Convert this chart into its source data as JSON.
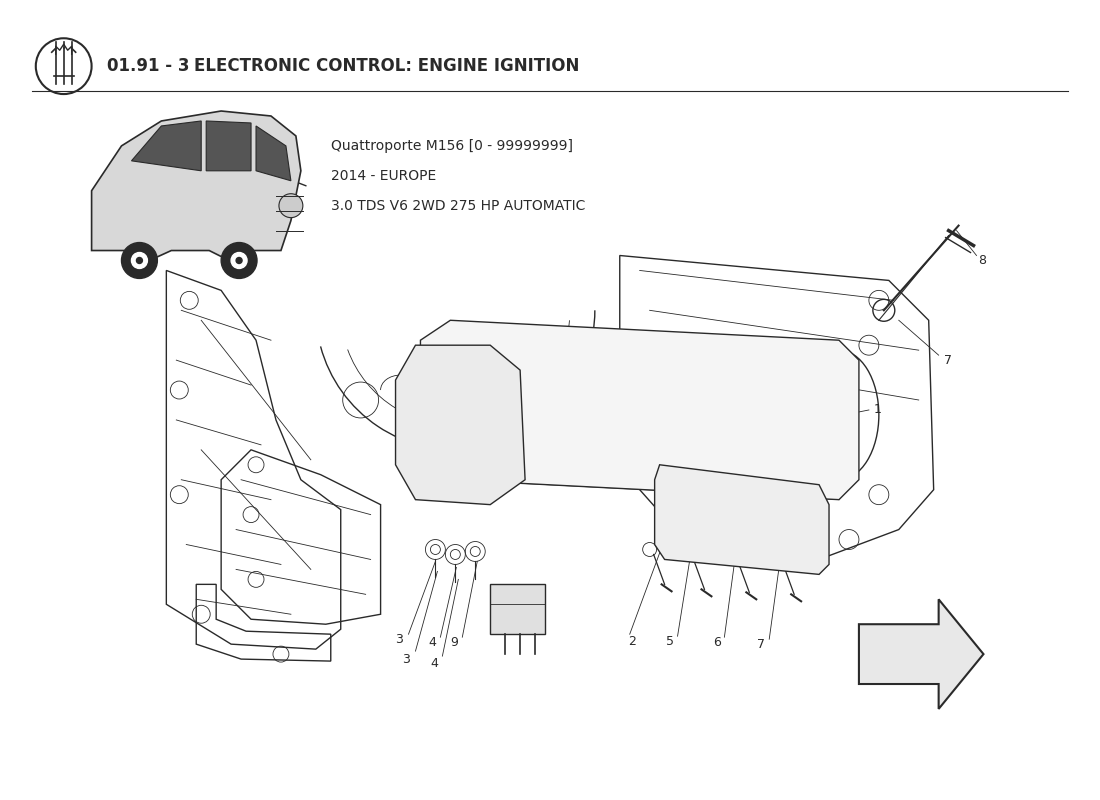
{
  "title_bold": "01.91 - 3 ",
  "title_rest": "ELECTRONIC CONTROL: ENGINE IGNITION",
  "subtitle_line1": "Quattroporte M156 [0 - 99999999]",
  "subtitle_line2": "2014 - EUROPE",
  "subtitle_line3": "3.0 TDS V6 2WD 275 HP AUTOMATIC",
  "bg_color": "#ffffff",
  "line_color": "#2a2a2a",
  "title_fontsize": 12,
  "subtitle_fontsize": 10,
  "label_fontsize": 9
}
